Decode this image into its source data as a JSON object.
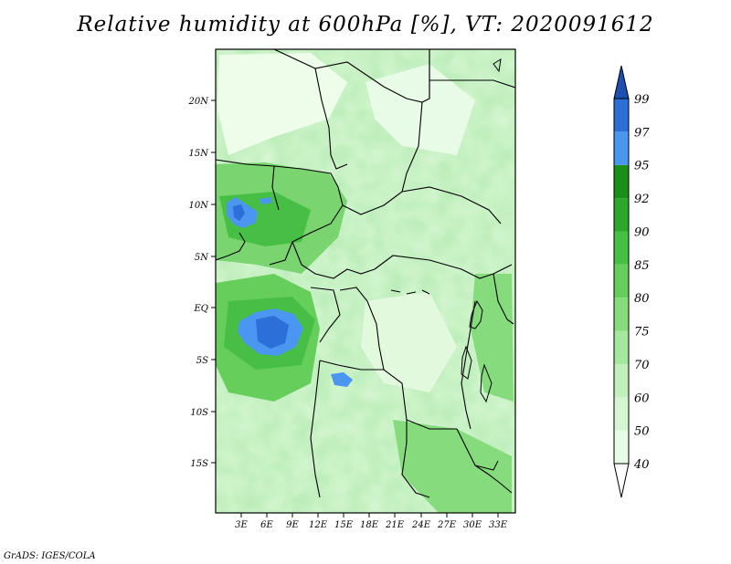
{
  "title": "Relative humidity at 600hPa [%], VT: 2020091612",
  "credit": "GrADS: IGES/COLA",
  "map": {
    "lat_ticks": [
      "20N",
      "15N",
      "10N",
      "5N",
      "EQ",
      "5S",
      "10S",
      "15S"
    ],
    "lon_ticks": [
      "3E",
      "6E",
      "9E",
      "12E",
      "15E",
      "18E",
      "21E",
      "24E",
      "27E",
      "30E",
      "33E"
    ]
  },
  "colorbar": {
    "levels": [
      "40",
      "50",
      "60",
      "70",
      "75",
      "80",
      "85",
      "90",
      "92",
      "95",
      "97",
      "99"
    ],
    "colors": [
      "#ffffff",
      "#e8fbe6",
      "#d6f6d2",
      "#c2f0bd",
      "#a4e89c",
      "#86dc7c",
      "#66cf5c",
      "#46bf44",
      "#2ea82c",
      "#1a8f1a",
      "#4a96f0",
      "#2c6fd8",
      "#1c4fb0"
    ]
  }
}
